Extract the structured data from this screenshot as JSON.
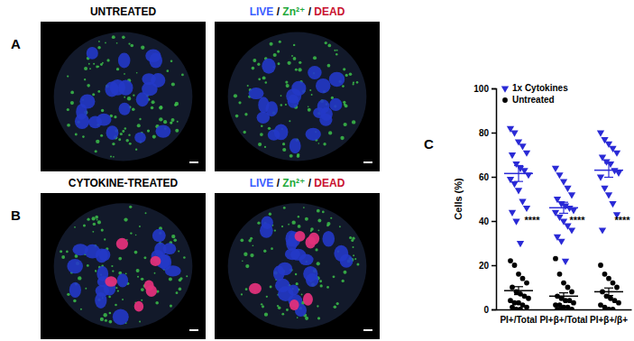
{
  "panels": [
    {
      "label": "A",
      "title": "UNTREATED",
      "stain": [
        {
          "text": "LIVE",
          "color": "#3a5cff"
        },
        {
          "text": " / ",
          "color": "#000000"
        },
        {
          "text": "Zn²⁺",
          "color": "#22a83a"
        },
        {
          "text": " / ",
          "color": "#000000"
        },
        {
          "text": "DEAD",
          "color": "#c8102e"
        }
      ]
    },
    {
      "label": "B",
      "title": "CYTOKINE-TREATED",
      "stain": [
        {
          "text": "LIVE",
          "color": "#3a5cff"
        },
        {
          "text": " / ",
          "color": "#000000"
        },
        {
          "text": "Zn²⁺",
          "color": "#22a83a"
        },
        {
          "text": " / ",
          "color": "#000000"
        },
        {
          "text": "DEAD",
          "color": "#c8102e"
        }
      ]
    }
  ],
  "chart_data": {
    "type": "scatter",
    "label": "C",
    "y_label": "Cells (%)",
    "categories": [
      "PI+/Total",
      "PI+β+/Total",
      "PI+β+/β+"
    ],
    "ylim": [
      0,
      100
    ],
    "yticks": [
      0,
      20,
      40,
      60,
      80,
      100
    ],
    "grid": false,
    "legend": "upper left",
    "series": [
      {
        "name": "1x Cytokines",
        "color": "#2a2ad6",
        "marker": "triangle-down",
        "values": [
          [
            82,
            80,
            76,
            74,
            71,
            70,
            66,
            64,
            63,
            61,
            59,
            57,
            54,
            49,
            46,
            44,
            40,
            30
          ],
          [
            64,
            61,
            58,
            55,
            52,
            50,
            48,
            47,
            46,
            45,
            44,
            42,
            40,
            38,
            36,
            33,
            31,
            22
          ],
          [
            80,
            77,
            75,
            73,
            71,
            69,
            67,
            66,
            63,
            62,
            60,
            55,
            52,
            48,
            43,
            36
          ]
        ],
        "mean": [
          61.5,
          46,
          63
        ],
        "error": [
          3.6,
          2.5,
          3.2
        ]
      },
      {
        "name": "Untreated",
        "color": "#000000",
        "marker": "circle",
        "values": [
          [
            22,
            20,
            16,
            14,
            12,
            10,
            8,
            7,
            6,
            5,
            4,
            3,
            3,
            2,
            1,
            1,
            0,
            0
          ],
          [
            23,
            16,
            12,
            10,
            8,
            6,
            5,
            4,
            4,
            3,
            2,
            2,
            1,
            1,
            0,
            0,
            0
          ],
          [
            20,
            16,
            14,
            12,
            10,
            8,
            6,
            5,
            4,
            3,
            2,
            1,
            0,
            0
          ]
        ],
        "mean": [
          8.5,
          6,
          8
        ],
        "error": [
          1.8,
          1.5,
          1.7
        ]
      }
    ],
    "annotations": [
      {
        "text": "****",
        "x": 0,
        "y": 40
      },
      {
        "text": "****",
        "x": 1,
        "y": 40
      },
      {
        "text": "****",
        "x": 2,
        "y": 40
      }
    ]
  }
}
